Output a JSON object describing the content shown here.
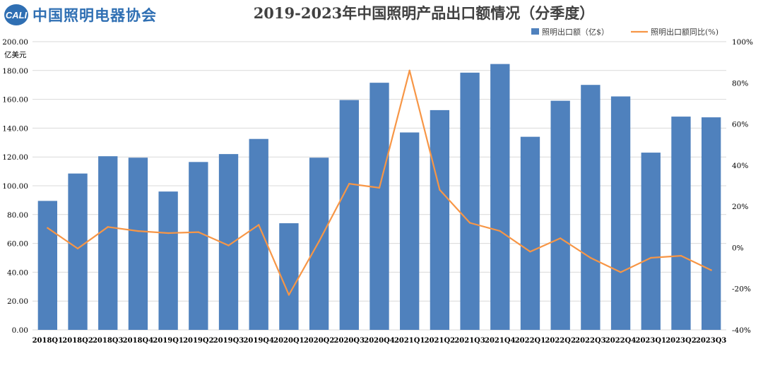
{
  "logo": {
    "mark": "CALI",
    "text": "中国照明电器协会"
  },
  "chart_data": {
    "type": "bar",
    "title": "2019-2023年中国照明产品出口额情况（分季度）",
    "ylabel": "亿美元",
    "ylim": [
      0,
      200
    ],
    "y2lim": [
      -40,
      100
    ],
    "categories": [
      "2018Q1",
      "2018Q2",
      "2018Q3",
      "2018Q4",
      "2019Q1",
      "2019Q2",
      "2019Q3",
      "2019Q4",
      "2020Q1",
      "2020Q2",
      "2020Q3",
      "2020Q4",
      "2021Q1",
      "2021Q2",
      "2021Q3",
      "2021Q4",
      "2022Q1",
      "2022Q2",
      "2022Q3",
      "2022Q4",
      "2023Q1",
      "2023Q2",
      "2023Q3"
    ],
    "yticks": [
      "0.00",
      "20.00",
      "40.00",
      "60.00",
      "80.00",
      "100.00",
      "120.00",
      "140.00",
      "160.00",
      "180.00",
      "200.00"
    ],
    "y2ticks": [
      "-40%",
      "-20%",
      "0%",
      "20%",
      "40%",
      "60%",
      "80%",
      "100%"
    ],
    "series": [
      {
        "name": "照明出口额（亿$）",
        "type": "bar",
        "color": "#4f81bd",
        "values": [
          89.5,
          108.5,
          120.5,
          119.5,
          96,
          116.5,
          122,
          132.5,
          74,
          119.5,
          159.5,
          171.5,
          137,
          152.5,
          178.5,
          184.5,
          134,
          159,
          170,
          162,
          123,
          148,
          147.5
        ]
      },
      {
        "name": "照明出口额同比(%)",
        "type": "line",
        "axis": "right",
        "color": "#f79646",
        "values": [
          9.5,
          -0.5,
          10,
          8,
          7,
          7.5,
          1,
          11,
          -23,
          3,
          31,
          29,
          86,
          28,
          12,
          8,
          -2,
          4.5,
          -5,
          -12,
          -5,
          -4,
          -11
        ]
      }
    ],
    "legend": "top-right",
    "grid": true
  }
}
